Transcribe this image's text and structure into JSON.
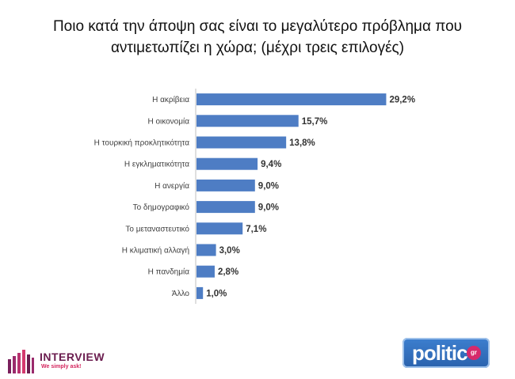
{
  "title_lines": [
    "Ποιο κατά την άποψη σας είναι το μεγαλύτερο πρόβλημα που",
    "αντιμετωπίζει η χώρα; (μέχρι τρεις επιλογές)"
  ],
  "chart_data": {
    "type": "bar",
    "orientation": "horizontal",
    "categories": [
      "Η ακρίβεια",
      "Η οικονομία",
      "Η τουρκική προκλητικότητα",
      "Η εγκληματικότητα",
      "Η ανεργία",
      "Το δημογραφικό",
      "Το μεταναστευτικό",
      "Η κλιματική αλλαγή",
      "Η πανδημία",
      "Άλλο"
    ],
    "values": [
      29.2,
      15.7,
      13.8,
      9.4,
      9.0,
      9.0,
      7.1,
      3.0,
      2.8,
      1.0
    ],
    "value_labels": [
      "29,2%",
      "15,7%",
      "13,8%",
      "9,4%",
      "9,0%",
      "9,0%",
      "7,1%",
      "3,0%",
      "2,8%",
      "1,0%"
    ],
    "bar_color": "#4e7dc4",
    "axis_color": "#bfbfbf",
    "grid": false,
    "legend": false
  },
  "logos": {
    "interview_name": "INTERVIEW",
    "interview_tagline": "We simply ask!",
    "politic_word": "politic",
    "politic_suffix": "gr"
  }
}
